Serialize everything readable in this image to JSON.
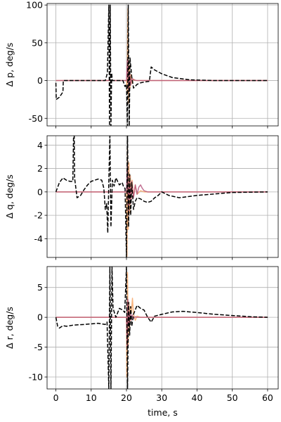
{
  "chart_data": [
    {
      "type": "line",
      "ylabel": "Δ p, deg/s",
      "xlim": [
        -2.5,
        63
      ],
      "ylim": [
        -60,
        102
      ],
      "yticks": [
        -50,
        0,
        50,
        100
      ],
      "xticks": [
        0,
        10,
        20,
        30,
        40,
        50,
        60
      ],
      "show_xtick_labels": false,
      "grid": true,
      "series": [
        {
          "style": "dashed",
          "color": "#000000",
          "x": [
            0,
            0.1,
            1,
            2,
            2.1,
            3,
            5,
            10,
            14,
            14.6,
            15.0,
            15.2,
            15.4,
            15.6,
            15.8,
            16,
            19,
            19.6,
            20,
            20.3,
            20.5,
            20.8,
            21,
            21.5,
            22,
            23,
            24,
            25,
            26.5,
            27,
            28,
            30,
            33,
            38,
            45,
            60
          ],
          "y": [
            -3,
            -25,
            -22,
            -15,
            0,
            0,
            0,
            0,
            0,
            10,
            100,
            -60,
            100,
            -60,
            10,
            0,
            0,
            -8,
            -5,
            -60,
            100,
            -60,
            30,
            5,
            -10,
            -5,
            -3,
            -2,
            -1,
            18,
            14,
            9,
            4,
            1,
            0,
            0
          ]
        },
        {
          "style": "solid",
          "color": "#f7a86a",
          "opacity": 0.85,
          "x": [
            0,
            20,
            20.2,
            20.4,
            20.6,
            20.8,
            21,
            21.3,
            21.6,
            22,
            22.5,
            24,
            60
          ],
          "y": [
            0,
            0,
            -15,
            95,
            -30,
            20,
            -10,
            8,
            -4,
            2,
            0,
            0,
            0
          ]
        },
        {
          "style": "solid",
          "color": "#b4507a",
          "opacity": 0.8,
          "x": [
            0,
            20,
            20.3,
            20.6,
            20.9,
            21.2,
            21.5,
            22,
            23,
            60
          ],
          "y": [
            0,
            0,
            28,
            -12,
            10,
            -6,
            3,
            1,
            0,
            0
          ]
        }
      ]
    },
    {
      "type": "line",
      "ylabel": "Δ q, deg/s",
      "xlim": [
        -2.5,
        63
      ],
      "ylim": [
        -5.6,
        4.8
      ],
      "yticks": [
        -4,
        -2,
        0,
        2,
        4
      ],
      "xticks": [
        0,
        10,
        20,
        30,
        40,
        50,
        60
      ],
      "show_xtick_labels": false,
      "grid": true,
      "series": [
        {
          "style": "dashed",
          "color": "#000000",
          "x": [
            0,
            1,
            2,
            3,
            4,
            4.8,
            5,
            5.2,
            5.3,
            6,
            7,
            8,
            9,
            10,
            11,
            12,
            13,
            13.6,
            14,
            14.4,
            14.7,
            15,
            15.3,
            15.6,
            16,
            16.5,
            17,
            18,
            18.8,
            19.2,
            19.6,
            20,
            20.3,
            20.6,
            20.9,
            21.2,
            21.5,
            22,
            22.5,
            23,
            24,
            25,
            26,
            27,
            28,
            29,
            30,
            32,
            35,
            40,
            50,
            60
          ],
          "y": [
            0,
            0.8,
            1.2,
            1.0,
            0.9,
            0.9,
            4.8,
            4.8,
            1.2,
            -0.5,
            -0.3,
            0.2,
            0.6,
            0.9,
            1.0,
            1.1,
            1.0,
            0.3,
            -1.5,
            -1.0,
            -3.5,
            0.9,
            4.8,
            -3.0,
            1.0,
            0.5,
            1.2,
            0.6,
            0.8,
            0.4,
            0.3,
            -5.6,
            4.8,
            -3.0,
            1.5,
            -2.0,
            0.8,
            -1.5,
            -0.8,
            -0.5,
            -0.6,
            -0.8,
            -0.9,
            -0.8,
            -0.5,
            -0.3,
            0,
            -0.3,
            -0.5,
            -0.3,
            -0.05,
            0
          ]
        },
        {
          "style": "solid",
          "color": "#f7a86a",
          "opacity": 0.85,
          "x": [
            0,
            20,
            20.15,
            20.3,
            20.5,
            20.7,
            20.9,
            21.1,
            21.3,
            21.6,
            22,
            22.5,
            23,
            24,
            25,
            60
          ],
          "y": [
            0,
            0,
            -5.5,
            3.7,
            -3.2,
            2.5,
            -1.8,
            1.4,
            -0.8,
            1.0,
            -0.4,
            0.6,
            -0.2,
            0.1,
            0,
            0
          ]
        },
        {
          "style": "solid",
          "color": "#b4507a",
          "opacity": 0.8,
          "x": [
            0,
            20,
            20.3,
            20.6,
            20.9,
            21.2,
            21.5,
            22,
            22.5,
            23,
            23.5,
            24,
            24.5,
            25,
            26,
            60
          ],
          "y": [
            0,
            0,
            2.5,
            -2.0,
            1.4,
            -1.0,
            0.9,
            -0.5,
            0.6,
            -0.2,
            0.4,
            0.6,
            0.3,
            0.1,
            0,
            0
          ]
        }
      ]
    },
    {
      "type": "line",
      "ylabel": "Δ r, deg/s",
      "xlim": [
        -2.5,
        63
      ],
      "ylim": [
        -12,
        8.5
      ],
      "yticks": [
        -10,
        -5,
        0,
        5
      ],
      "xticks": [
        0,
        10,
        20,
        30,
        40,
        50,
        60
      ],
      "xtick_labels": [
        "0",
        "10",
        "20",
        "30",
        "40",
        "50",
        "60"
      ],
      "show_xtick_labels": true,
      "xlabel": "time, s",
      "grid": true,
      "series": [
        {
          "style": "dashed",
          "color": "#000000",
          "x": [
            0,
            0.5,
            1,
            2,
            3,
            5,
            8,
            10,
            12,
            14,
            14.5,
            15,
            15.3,
            15.6,
            15.9,
            16.2,
            17,
            18,
            19,
            19.5,
            20,
            20.3,
            20.6,
            20.9,
            21.2,
            21.5,
            22,
            23,
            24,
            25,
            26,
            27,
            28,
            30,
            33,
            36,
            40,
            45,
            50,
            55,
            60
          ],
          "y": [
            0,
            -1.5,
            -1.8,
            -1.4,
            -1.5,
            -1.3,
            -1.2,
            -1.1,
            -1.0,
            -1.2,
            -0.8,
            -12,
            8.5,
            -12,
            8.5,
            1.5,
            0,
            1.5,
            1.2,
            0.8,
            8.5,
            -12,
            2.5,
            -3.0,
            1.8,
            -1.5,
            0.5,
            2.0,
            1.5,
            1.2,
            0,
            -0.8,
            0.2,
            0.5,
            0.9,
            1.0,
            0.8,
            0.5,
            0.3,
            0.1,
            0
          ]
        },
        {
          "style": "solid",
          "color": "#f7a86a",
          "opacity": 0.85,
          "x": [
            0,
            20,
            20.1,
            20.3,
            20.5,
            20.7,
            20.9,
            21.1,
            21.4,
            21.7,
            22,
            22.5,
            23,
            24,
            60
          ],
          "y": [
            0,
            0,
            -10,
            7.5,
            -4.5,
            2.5,
            -1.5,
            1.8,
            0.8,
            3.2,
            0.5,
            -0.5,
            0.2,
            0,
            0
          ]
        },
        {
          "style": "solid",
          "color": "#b4507a",
          "opacity": 0.8,
          "x": [
            0,
            20,
            20.2,
            20.4,
            20.7,
            21,
            21.3,
            21.6,
            22,
            22.5,
            23,
            60
          ],
          "y": [
            0,
            0,
            -5,
            3,
            -1.5,
            1.0,
            -0.5,
            0.4,
            -0.2,
            0.1,
            0,
            0
          ]
        }
      ]
    }
  ]
}
